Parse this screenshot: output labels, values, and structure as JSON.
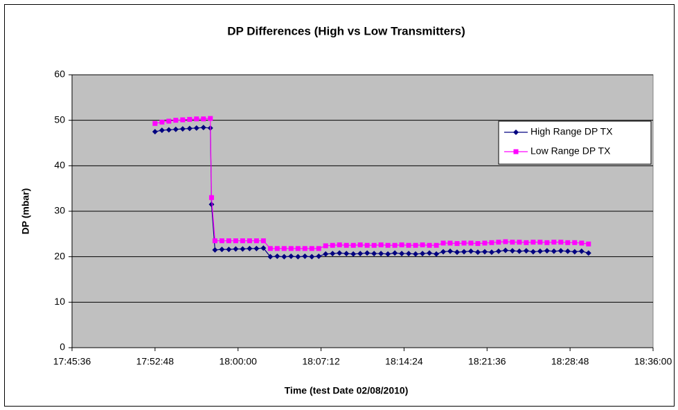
{
  "chart_data": {
    "type": "line",
    "title": "DP Differences (High vs Low Transmitters)",
    "xlabel": "Time (test Date 02/08/2010)",
    "ylabel": "DP (mbar)",
    "x": [
      64368,
      64404,
      64440,
      64476,
      64512,
      64548,
      64584,
      64620,
      64656,
      64662,
      64680,
      64716,
      64752,
      64788,
      64824,
      64860,
      64896,
      64932,
      64968,
      65004,
      65040,
      65076,
      65112,
      65148,
      65184,
      65220,
      65256,
      65292,
      65328,
      65364,
      65400,
      65436,
      65472,
      65508,
      65544,
      65580,
      65616,
      65652,
      65688,
      65724,
      65760,
      65796,
      65832,
      65868,
      65904,
      65940,
      65976,
      66012,
      66048,
      66084,
      66120,
      66156,
      66192,
      66228,
      66264,
      66300,
      66336,
      66372,
      66408,
      66444,
      66480,
      66516,
      66552,
      66588,
      66624
    ],
    "series": [
      {
        "name": "High Range DP TX",
        "color": "#000080",
        "marker": "diamond",
        "values": [
          47.5,
          47.8,
          47.9,
          48.0,
          48.1,
          48.2,
          48.3,
          48.4,
          48.3,
          31.5,
          21.5,
          21.6,
          21.6,
          21.7,
          21.7,
          21.8,
          21.8,
          21.9,
          20.0,
          20.1,
          20.0,
          20.1,
          20.0,
          20.1,
          20.0,
          20.1,
          20.6,
          20.7,
          20.8,
          20.7,
          20.6,
          20.7,
          20.8,
          20.7,
          20.7,
          20.6,
          20.8,
          20.7,
          20.7,
          20.6,
          20.7,
          20.8,
          20.6,
          21.1,
          21.2,
          21.0,
          21.1,
          21.2,
          21.0,
          21.1,
          21.0,
          21.2,
          21.4,
          21.3,
          21.2,
          21.3,
          21.1,
          21.2,
          21.3,
          21.2,
          21.3,
          21.2,
          21.1,
          21.2,
          20.8
        ]
      },
      {
        "name": "Low Range DP TX",
        "color": "#ff00ff",
        "marker": "square",
        "values": [
          49.3,
          49.6,
          49.8,
          50.0,
          50.1,
          50.2,
          50.3,
          50.3,
          50.4,
          33.0,
          23.5,
          23.5,
          23.5,
          23.5,
          23.5,
          23.5,
          23.5,
          23.5,
          21.8,
          21.8,
          21.8,
          21.8,
          21.8,
          21.8,
          21.8,
          21.8,
          22.4,
          22.5,
          22.6,
          22.5,
          22.5,
          22.6,
          22.5,
          22.5,
          22.6,
          22.5,
          22.5,
          22.6,
          22.5,
          22.5,
          22.6,
          22.5,
          22.5,
          23.0,
          23.0,
          22.9,
          23.0,
          23.0,
          22.9,
          23.0,
          23.1,
          23.2,
          23.3,
          23.2,
          23.2,
          23.1,
          23.2,
          23.2,
          23.1,
          23.2,
          23.2,
          23.1,
          23.1,
          23.0,
          22.8
        ]
      }
    ],
    "xlim": [
      63936,
      66960
    ],
    "xticks": [
      {
        "value": 63936,
        "label": "17:45:36"
      },
      {
        "value": 64368,
        "label": "17:52:48"
      },
      {
        "value": 64800,
        "label": "18:00:00"
      },
      {
        "value": 65232,
        "label": "18:07:12"
      },
      {
        "value": 65664,
        "label": "18:14:24"
      },
      {
        "value": 66096,
        "label": "18:21:36"
      },
      {
        "value": 66528,
        "label": "18:28:48"
      },
      {
        "value": 66960,
        "label": "18:36:00"
      }
    ],
    "ylim": [
      0,
      60
    ],
    "yticks": [
      0,
      10,
      20,
      30,
      40,
      50,
      60
    ],
    "grid": true,
    "legend": "right",
    "plot_background": "#c0c0c0"
  }
}
